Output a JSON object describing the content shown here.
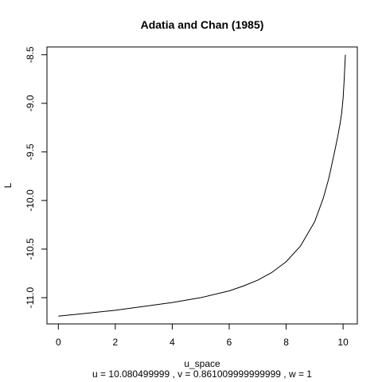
{
  "chart_data": {
    "type": "line",
    "title": "Adatia and Chan (1985)",
    "xlabel": "u_space",
    "ylabel": "L",
    "subtitle": "u =  10.080499999 , v =  0.861009999999999 , w =  1",
    "xlim": [
      -0.4,
      10.5
    ],
    "ylim": [
      -11.27,
      -8.42
    ],
    "xticks": [
      0,
      2,
      4,
      6,
      8,
      10
    ],
    "xtick_labels": [
      "0",
      "2",
      "4",
      "6",
      "8",
      "10"
    ],
    "yticks": [
      -11.0,
      -10.5,
      -10.0,
      -9.5,
      -9.0,
      -8.5
    ],
    "ytick_labels": [
      "-11.0",
      "-10.5",
      "-10.0",
      "-9.5",
      "-9.0",
      "-8.5"
    ],
    "grid": false,
    "series": [
      {
        "x": [
          0,
          1,
          2,
          3,
          4,
          5,
          6,
          6.5,
          7,
          7.5,
          8,
          8.5,
          9,
          9.3,
          9.5,
          9.7,
          9.8,
          9.9,
          9.95,
          10.0,
          10.04,
          10.08
        ],
        "y": [
          -11.19,
          -11.16,
          -11.13,
          -11.09,
          -11.05,
          -11.0,
          -10.93,
          -10.88,
          -10.82,
          -10.74,
          -10.63,
          -10.47,
          -10.22,
          -9.98,
          -9.77,
          -9.5,
          -9.36,
          -9.2,
          -9.1,
          -8.95,
          -8.75,
          -8.5
        ],
        "color": "#000000"
      }
    ]
  }
}
